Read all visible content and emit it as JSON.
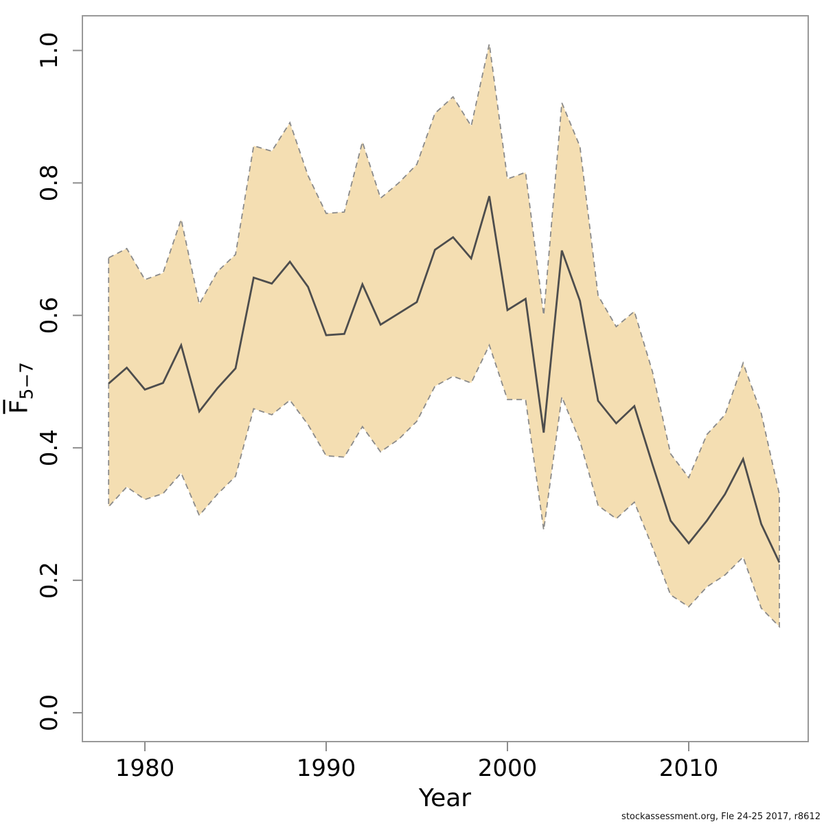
{
  "figure": {
    "background": "#ffffff"
  },
  "chart_data": {
    "type": "line",
    "title": "",
    "xlabel": "Year",
    "ylabel": {
      "base": "F",
      "overline": true,
      "sub": "5−7"
    },
    "x": [
      1978,
      1979,
      1980,
      1981,
      1982,
      1983,
      1984,
      1985,
      1986,
      1987,
      1988,
      1989,
      1990,
      1991,
      1992,
      1993,
      1994,
      1995,
      1996,
      1997,
      1998,
      1999,
      2000,
      2001,
      2002,
      2003,
      2004,
      2005,
      2006,
      2007,
      2008,
      2009,
      2010,
      2011,
      2012,
      2013,
      2014,
      2015
    ],
    "series": [
      {
        "name": "F estimate",
        "role": "center",
        "values": [
          0.497,
          0.521,
          0.488,
          0.498,
          0.555,
          0.455,
          0.49,
          0.52,
          0.657,
          0.648,
          0.681,
          0.643,
          0.57,
          0.572,
          0.647,
          0.586,
          0.603,
          0.62,
          0.699,
          0.718,
          0.686,
          0.78,
          0.608,
          0.625,
          0.423,
          0.698,
          0.622,
          0.471,
          0.437,
          0.463,
          0.375,
          0.29,
          0.256,
          0.29,
          0.33,
          0.383,
          0.285,
          0.227
        ]
      },
      {
        "name": "CI upper",
        "role": "ci-upper",
        "values": [
          0.687,
          0.701,
          0.654,
          0.664,
          0.745,
          0.617,
          0.666,
          0.692,
          0.856,
          0.848,
          0.891,
          0.811,
          0.754,
          0.756,
          0.862,
          0.777,
          0.8,
          0.828,
          0.905,
          0.93,
          0.886,
          1.01,
          0.806,
          0.816,
          0.6,
          0.921,
          0.855,
          0.63,
          0.583,
          0.606,
          0.515,
          0.391,
          0.355,
          0.42,
          0.45,
          0.528,
          0.452,
          0.33
        ]
      },
      {
        "name": "CI lower",
        "role": "ci-lower",
        "values": [
          0.311,
          0.341,
          0.322,
          0.331,
          0.362,
          0.298,
          0.33,
          0.357,
          0.459,
          0.45,
          0.472,
          0.435,
          0.388,
          0.386,
          0.432,
          0.394,
          0.413,
          0.44,
          0.493,
          0.508,
          0.498,
          0.555,
          0.473,
          0.473,
          0.276,
          0.477,
          0.41,
          0.313,
          0.293,
          0.318,
          0.25,
          0.178,
          0.16,
          0.19,
          0.208,
          0.235,
          0.158,
          0.13
        ]
      }
    ],
    "band": {
      "fill": "#f4deb2",
      "border_color": "#8a8a8a",
      "border_style": "dashed"
    },
    "line_color": "#4d4d4d",
    "axes": {
      "x_ticks": [
        1980,
        1990,
        2000,
        2010
      ],
      "y_ticks": [
        "0.0",
        "0.2",
        "0.4",
        "0.6",
        "0.8",
        "1.0"
      ],
      "xlim": [
        1976.5,
        2016.6
      ],
      "ylim": [
        -0.04,
        1.09
      ],
      "grid": false,
      "legend": "none",
      "box_color": "#999999",
      "tick_color": "#8c8c8c",
      "tick_label_color": "#000000"
    },
    "watermark": "stockassessment.org, Fle 24-25 2017, r8612"
  }
}
